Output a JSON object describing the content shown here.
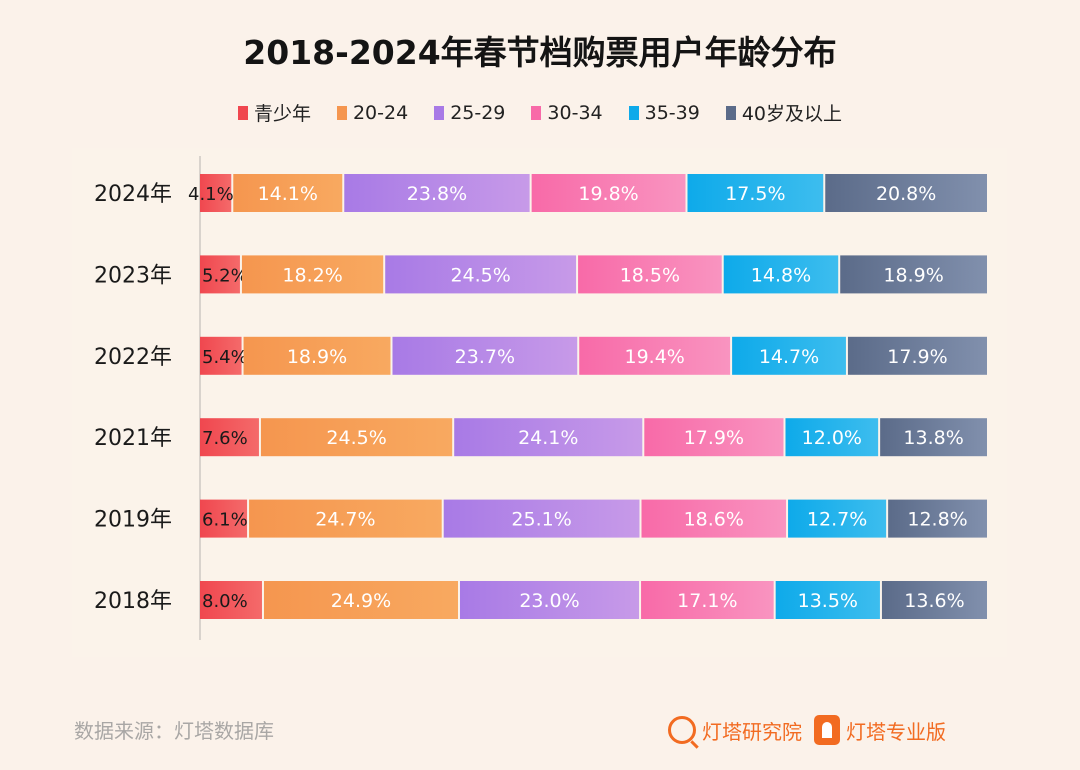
{
  "chart_data": {
    "type": "bar",
    "orientation": "horizontal",
    "stacked": true,
    "title": "2018-2024年春节档购票用户年龄分布",
    "xlabel": "",
    "ylabel": "",
    "categories": [
      "2024年",
      "2023年",
      "2022年",
      "2021年",
      "2019年",
      "2018年"
    ],
    "series": [
      {
        "name": "青少年",
        "color": "#f0474f",
        "color_end": "#f46a6a",
        "values": [
          4.1,
          5.2,
          5.4,
          7.6,
          6.1,
          8.0
        ]
      },
      {
        "name": "20-24",
        "color": "#f5964f",
        "color_end": "#f8a960",
        "values": [
          14.1,
          18.2,
          18.9,
          24.5,
          24.7,
          24.9
        ]
      },
      {
        "name": "25-29",
        "color": "#a87ae6",
        "color_end": "#c79ae8",
        "values": [
          23.8,
          24.5,
          23.7,
          24.1,
          25.1,
          23.0
        ]
      },
      {
        "name": "30-34",
        "color": "#f86aa8",
        "color_end": "#f994c0",
        "values": [
          19.8,
          18.5,
          19.4,
          17.9,
          18.6,
          17.1
        ]
      },
      {
        "name": "35-39",
        "color": "#0eaaea",
        "color_end": "#3dbdee",
        "values": [
          17.5,
          14.8,
          14.7,
          12.0,
          12.7,
          13.5
        ]
      },
      {
        "name": "40岁及以上",
        "color": "#5b6b89",
        "color_end": "#8190ad",
        "values": [
          20.8,
          18.9,
          17.9,
          13.8,
          12.8,
          13.6
        ]
      }
    ],
    "value_labels": [
      [
        "4.1%",
        "14.1%",
        "23.8%",
        "19.8%",
        "17.5%",
        "20.8%"
      ],
      [
        "5.2%",
        "18.2%",
        "24.5%",
        "18.5%",
        "14.8%",
        "18.9%"
      ],
      [
        "5.4%",
        "18.9%",
        "23.7%",
        "19.4%",
        "14.7%",
        "17.9%"
      ],
      [
        "7.6%",
        "24.5%",
        "24.1%",
        "17.9%",
        "12.0%",
        "13.8%"
      ],
      [
        "6.1%",
        "24.7%",
        "25.1%",
        "18.6%",
        "12.7%",
        "12.8%"
      ],
      [
        "8.0%",
        "24.9%",
        "23.0%",
        "17.1%",
        "13.5%",
        "13.6%"
      ]
    ],
    "xlim": [
      0,
      100
    ],
    "grid": false,
    "legend_position": "top-center"
  },
  "footer": {
    "source": "数据来源：灯塔数据库",
    "logo1": "灯塔研究院",
    "logo2": "灯塔专业版"
  }
}
